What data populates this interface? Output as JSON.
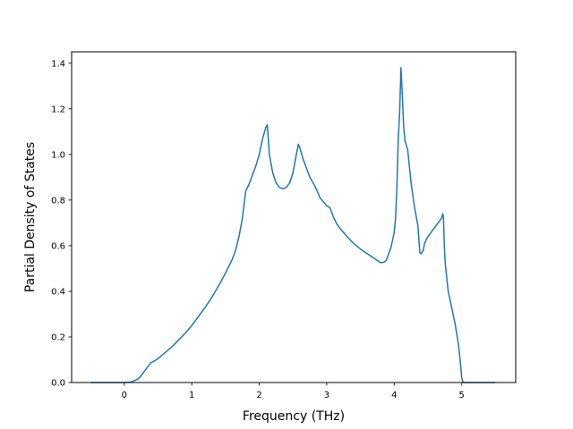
{
  "chart_data": {
    "type": "line",
    "title": "",
    "xlabel": "Frequency (THz)",
    "ylabel": "Partial Density of States",
    "xlim": [
      -0.78,
      5.8
    ],
    "ylim": [
      0.0,
      1.45
    ],
    "xticks": [
      0,
      1,
      2,
      3,
      4,
      5
    ],
    "yticks": [
      0.0,
      0.2,
      0.4,
      0.6,
      0.8,
      1.0,
      1.2,
      1.4
    ],
    "xtick_labels": [
      "0",
      "1",
      "2",
      "3",
      "4",
      "5"
    ],
    "ytick_labels": [
      "0.0",
      "0.2",
      "0.4",
      "0.6",
      "0.8",
      "1.0",
      "1.2",
      "1.4"
    ],
    "grid": false,
    "line_color": "#1f77b4",
    "series": [
      {
        "x": [
          -0.5,
          0.0,
          0.1,
          0.2,
          0.25,
          0.3,
          0.35,
          0.4,
          0.45,
          0.5,
          0.6,
          0.7,
          0.8,
          0.9,
          1.0,
          1.1,
          1.2,
          1.3,
          1.4,
          1.5,
          1.6,
          1.65,
          1.7,
          1.75,
          1.8,
          1.85,
          1.9,
          1.95,
          2.0,
          2.05,
          2.1,
          2.12,
          2.15,
          2.2,
          2.25,
          2.3,
          2.35,
          2.4,
          2.45,
          2.5,
          2.55,
          2.58,
          2.6,
          2.65,
          2.7,
          2.75,
          2.8,
          2.85,
          2.9,
          3.0,
          3.05,
          3.1,
          3.15,
          3.2,
          3.3,
          3.4,
          3.5,
          3.6,
          3.7,
          3.75,
          3.8,
          3.85,
          3.88,
          3.9,
          3.95,
          3.98,
          4.0,
          4.02,
          4.04,
          4.06,
          4.08,
          4.1,
          4.12,
          4.14,
          4.16,
          4.18,
          4.2,
          4.25,
          4.28,
          4.3,
          4.35,
          4.38,
          4.4,
          4.43,
          4.45,
          4.48,
          4.5,
          4.55,
          4.6,
          4.65,
          4.7,
          4.72,
          4.73,
          4.74,
          4.75,
          4.76,
          4.8,
          4.85,
          4.9,
          4.95,
          4.98,
          5.0,
          5.02,
          5.05,
          5.1,
          5.2,
          5.5
        ],
        "y": [
          0.0,
          0.0,
          0.002,
          0.015,
          0.03,
          0.05,
          0.07,
          0.088,
          0.095,
          0.105,
          0.13,
          0.155,
          0.185,
          0.215,
          0.25,
          0.29,
          0.33,
          0.375,
          0.425,
          0.48,
          0.54,
          0.58,
          0.64,
          0.72,
          0.84,
          0.87,
          0.91,
          0.95,
          1.0,
          1.07,
          1.12,
          1.13,
          1.0,
          0.92,
          0.875,
          0.855,
          0.85,
          0.855,
          0.875,
          0.92,
          1.0,
          1.045,
          1.03,
          0.98,
          0.94,
          0.9,
          0.875,
          0.845,
          0.81,
          0.775,
          0.765,
          0.725,
          0.695,
          0.675,
          0.64,
          0.61,
          0.585,
          0.565,
          0.545,
          0.535,
          0.525,
          0.528,
          0.535,
          0.55,
          0.59,
          0.63,
          0.66,
          0.72,
          0.86,
          1.07,
          1.18,
          1.38,
          1.26,
          1.12,
          1.06,
          1.04,
          1.02,
          0.875,
          0.81,
          0.77,
          0.69,
          0.57,
          0.565,
          0.58,
          0.61,
          0.63,
          0.64,
          0.66,
          0.68,
          0.7,
          0.72,
          0.74,
          0.72,
          0.62,
          0.55,
          0.51,
          0.4,
          0.33,
          0.26,
          0.17,
          0.09,
          0.02,
          0.0,
          0.0,
          0.0,
          0.0,
          0.0
        ]
      }
    ]
  }
}
